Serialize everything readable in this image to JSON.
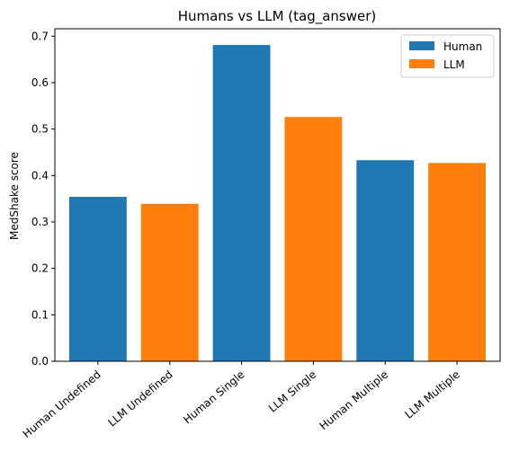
{
  "chart_data": {
    "type": "bar",
    "title": "Humans vs LLM (tag_answer)",
    "xlabel": "",
    "ylabel": "MedShake score",
    "categories": [
      "Human Undefined",
      "LLM Undefined",
      "Human Single",
      "LLM Single",
      "Human Multiple",
      "LLM Multiple"
    ],
    "values": [
      0.354,
      0.339,
      0.681,
      0.526,
      0.433,
      0.427
    ],
    "bar_series": [
      "Human",
      "LLM",
      "Human",
      "LLM",
      "Human",
      "LLM"
    ],
    "series": [
      {
        "name": "Human",
        "color": "#1f77b4"
      },
      {
        "name": "LLM",
        "color": "#ff7f0e"
      }
    ],
    "ylim": [
      0,
      0.716
    ],
    "yticks": [
      "0.0",
      "0.1",
      "0.2",
      "0.3",
      "0.4",
      "0.5",
      "0.6",
      "0.7"
    ],
    "grid": false,
    "legend_position": "top-right"
  }
}
